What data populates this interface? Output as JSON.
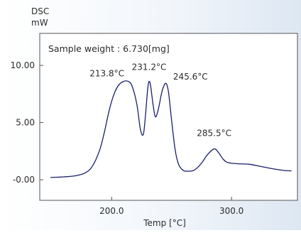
{
  "chart_data": {
    "type": "line",
    "ylabel_line1": "DSC",
    "ylabel_line2": "mW",
    "xlabel": "Temp [°C]",
    "annotation_box": "Sample weight : 6.730[mg]",
    "xlim": [
      140,
      355
    ],
    "ylim": [
      -1.8,
      12.8
    ],
    "grid": false,
    "x_ticks": [
      {
        "value": 200,
        "label": "200.0"
      },
      {
        "value": 300,
        "label": "300.0"
      }
    ],
    "y_ticks": [
      {
        "value": 10,
        "label": "10.00"
      },
      {
        "value": 5,
        "label": "5.00"
      },
      {
        "value": 0,
        "label": "-0.00"
      }
    ],
    "peak_labels": [
      {
        "label": "213.8°C",
        "x": 213.8,
        "y": 8.6
      },
      {
        "label": "231.2°C",
        "x": 231.2,
        "y": 8.6
      },
      {
        "label": "245.6°C",
        "x": 245.6,
        "y": 8.4
      },
      {
        "label": "285.5°C",
        "x": 285.5,
        "y": 2.7
      }
    ],
    "series": [
      {
        "color": "#1a1f6b",
        "points": [
          [
            149,
            0.2
          ],
          [
            160,
            0.25
          ],
          [
            170,
            0.35
          ],
          [
            178,
            0.6
          ],
          [
            184,
            1.2
          ],
          [
            190,
            2.6
          ],
          [
            194,
            4.2
          ],
          [
            198,
            6.1
          ],
          [
            202,
            7.5
          ],
          [
            206,
            8.3
          ],
          [
            210,
            8.6
          ],
          [
            213.8,
            8.6
          ],
          [
            217,
            8.2
          ],
          [
            221,
            6.6
          ],
          [
            224,
            4.4
          ],
          [
            226.5,
            4.0
          ],
          [
            228.5,
            6.0
          ],
          [
            230,
            7.9
          ],
          [
            231.2,
            8.6
          ],
          [
            232.5,
            8.2
          ],
          [
            234.5,
            6.6
          ],
          [
            236.5,
            5.5
          ],
          [
            239,
            6.2
          ],
          [
            241.5,
            7.5
          ],
          [
            243.5,
            8.2
          ],
          [
            245.6,
            8.4
          ],
          [
            247.5,
            7.6
          ],
          [
            250,
            5.2
          ],
          [
            253,
            2.6
          ],
          [
            256,
            1.3
          ],
          [
            260,
            0.8
          ],
          [
            264,
            0.75
          ],
          [
            268,
            0.8
          ],
          [
            272,
            1.1
          ],
          [
            276,
            1.6
          ],
          [
            280,
            2.2
          ],
          [
            285.5,
            2.7
          ],
          [
            289,
            2.4
          ],
          [
            293,
            1.8
          ],
          [
            297,
            1.5
          ],
          [
            305,
            1.4
          ],
          [
            315,
            1.35
          ],
          [
            325,
            1.15
          ],
          [
            335,
            0.95
          ],
          [
            345,
            0.8
          ],
          [
            350,
            0.78
          ]
        ]
      }
    ]
  }
}
